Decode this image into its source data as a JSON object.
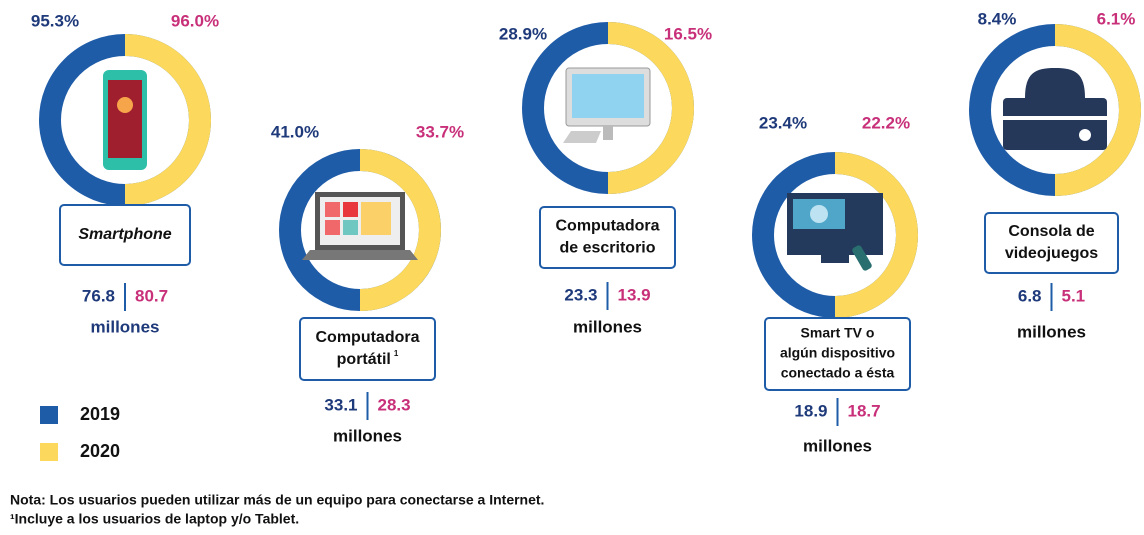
{
  "legend": [
    {
      "label": "2019",
      "color": "#1f5ca8"
    },
    {
      "label": "2020",
      "color": "#fcd95c"
    }
  ],
  "devices": [
    {
      "name": [
        "Smartphone"
      ],
      "pct_2019": "95.3%",
      "pct_2020": "96.0%",
      "val_2019": "76.8",
      "val_2020": "80.7",
      "unit": "millones",
      "icon": "phone"
    },
    {
      "name": [
        "Computadora",
        "portátil"
      ],
      "footnote": "1",
      "pct_2019": "41.0%",
      "pct_2020": "33.7%",
      "val_2019": "33.1",
      "val_2020": "28.3",
      "unit": "millones",
      "icon": "laptop"
    },
    {
      "name": [
        "Computadora",
        "de escritorio"
      ],
      "pct_2019": "28.9%",
      "pct_2020": "16.5%",
      "val_2019": "23.3",
      "val_2020": "13.9",
      "unit": "millones",
      "icon": "desktop"
    },
    {
      "name": [
        "Smart TV o",
        "algún dispositivo",
        "conectado a ésta"
      ],
      "pct_2019": "23.4%",
      "pct_2020": "22.2%",
      "val_2019": "18.9",
      "val_2020": "18.7",
      "unit": "millones",
      "icon": "tv"
    },
    {
      "name": [
        "Consola de",
        "videojuegos"
      ],
      "pct_2019": "8.4%",
      "pct_2020": "6.1%",
      "val_2019": "6.8",
      "val_2020": "5.1",
      "unit": "millones",
      "icon": "console"
    }
  ],
  "notes": [
    "Nota: Los usuarios pueden utilizar más de un equipo para conectarse a Internet.",
    "¹Incluye a los usuarios de laptop y/o Tablet."
  ]
}
